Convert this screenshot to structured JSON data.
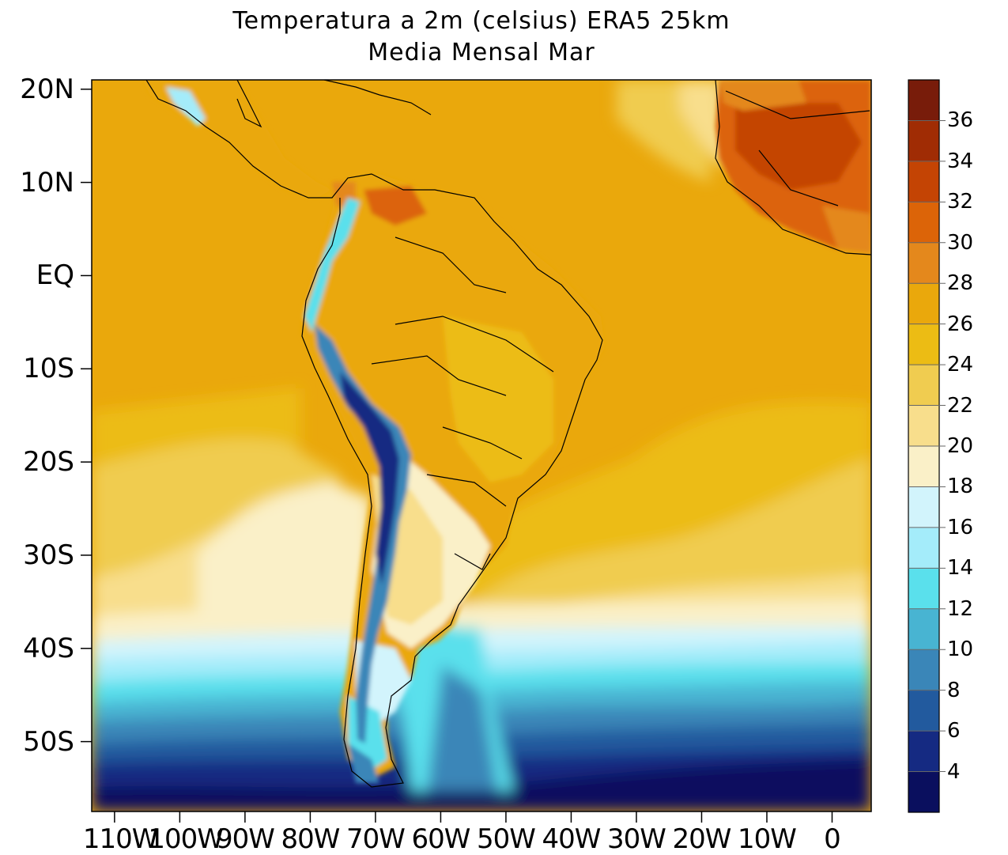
{
  "title": {
    "line1": "Temperatura a 2m (celsius) ERA5  25km",
    "line2": "Media Mensal Mar"
  },
  "map": {
    "variable": "2m air temperature",
    "units": "celsius",
    "lon_range": [
      -113.5,
      6
    ],
    "lat_range": [
      -57.5,
      21
    ],
    "lat_labels": [
      {
        "lat": 20,
        "text": "20N"
      },
      {
        "lat": 10,
        "text": "10N"
      },
      {
        "lat": 0,
        "text": "EQ"
      },
      {
        "lat": -10,
        "text": "10S"
      },
      {
        "lat": -20,
        "text": "20S"
      },
      {
        "lat": -30,
        "text": "30S"
      },
      {
        "lat": -40,
        "text": "40S"
      },
      {
        "lat": -50,
        "text": "50S"
      }
    ],
    "lon_labels": [
      {
        "lon": -110,
        "text": "110W"
      },
      {
        "lon": -100,
        "text": "100W"
      },
      {
        "lon": -90,
        "text": "90W"
      },
      {
        "lon": -80,
        "text": "80W"
      },
      {
        "lon": -70,
        "text": "70W"
      },
      {
        "lon": -60,
        "text": "60W"
      },
      {
        "lon": -50,
        "text": "50W"
      },
      {
        "lon": -40,
        "text": "40W"
      },
      {
        "lon": -30,
        "text": "30W"
      },
      {
        "lon": -20,
        "text": "20W"
      },
      {
        "lon": -10,
        "text": "10W"
      },
      {
        "lon": 0,
        "text": "0"
      }
    ]
  },
  "colorbar": {
    "levels": [
      4,
      6,
      8,
      10,
      12,
      14,
      16,
      18,
      20,
      22,
      24,
      26,
      28,
      30,
      32,
      34,
      36
    ],
    "colors": [
      "#0a0f5e",
      "#152a82",
      "#225a9e",
      "#3a86b8",
      "#48b4d2",
      "#5ae0ec",
      "#a4ecfa",
      "#d2f4fc",
      "#faf0c8",
      "#f8de8c",
      "#f0cc50",
      "#ecbc14",
      "#eaa80c",
      "#e4881c",
      "#dc6408",
      "#c44404",
      "#a02c04",
      "#781c0a"
    ]
  }
}
